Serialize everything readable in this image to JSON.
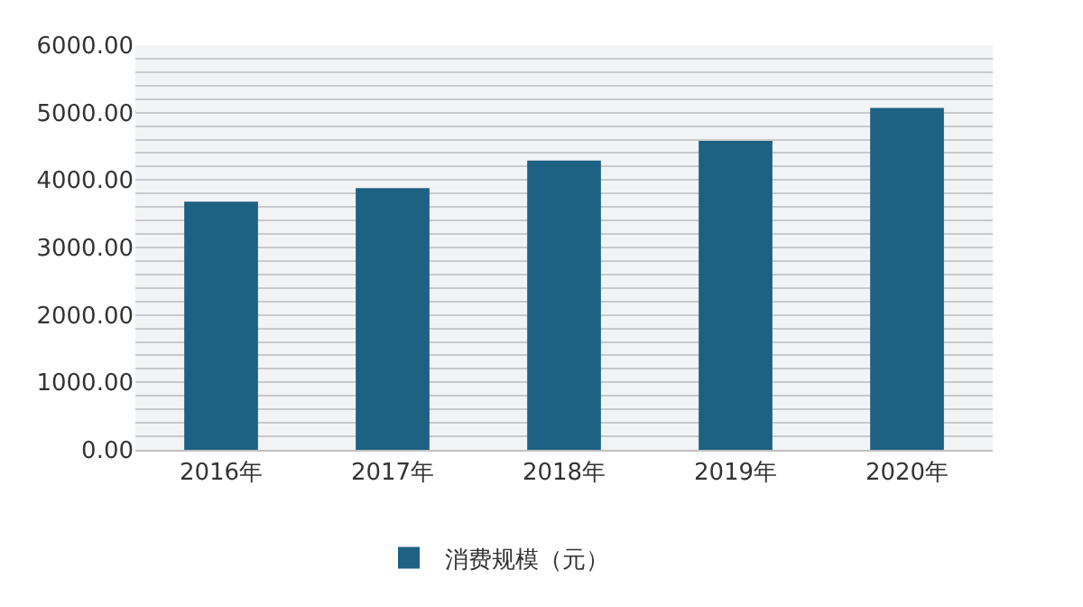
{
  "chart_data": {
    "type": "bar",
    "categories": [
      "2016年",
      "2017年",
      "2018年",
      "2019年",
      "2020年"
    ],
    "series": [
      {
        "name": "消费规模（元）",
        "color": "#1d6183",
        "values": [
          3680,
          3880,
          4290,
          4580,
          5070
        ]
      }
    ],
    "ylim": [
      0,
      6000
    ],
    "yticks": [
      {
        "value": 0,
        "label": "0.00"
      },
      {
        "value": 200,
        "label": null
      },
      {
        "value": 400,
        "label": null
      },
      {
        "value": 600,
        "label": null
      },
      {
        "value": 800,
        "label": null
      },
      {
        "value": 1000,
        "label": "1000.00"
      },
      {
        "value": 1200,
        "label": null
      },
      {
        "value": 1400,
        "label": null
      },
      {
        "value": 1600,
        "label": null
      },
      {
        "value": 1800,
        "label": null
      },
      {
        "value": 2000,
        "label": "2000.00"
      },
      {
        "value": 2200,
        "label": null
      },
      {
        "value": 2400,
        "label": null
      },
      {
        "value": 2600,
        "label": null
      },
      {
        "value": 2800,
        "label": null
      },
      {
        "value": 3000,
        "label": "3000.00"
      },
      {
        "value": 3200,
        "label": null
      },
      {
        "value": 3400,
        "label": null
      },
      {
        "value": 3600,
        "label": null
      },
      {
        "value": 3800,
        "label": null
      },
      {
        "value": 4000,
        "label": "4000.00"
      },
      {
        "value": 4200,
        "label": null
      },
      {
        "value": 4400,
        "label": null
      },
      {
        "value": 4600,
        "label": null
      },
      {
        "value": 4800,
        "label": null
      },
      {
        "value": 5000,
        "label": "5000.00"
      },
      {
        "value": 5200,
        "label": null
      },
      {
        "value": 5400,
        "label": null
      },
      {
        "value": 5600,
        "label": null
      },
      {
        "value": 5800,
        "label": null
      },
      {
        "value": 6000,
        "label": "6000.00"
      }
    ],
    "grid": "y",
    "legend": "bottom"
  }
}
